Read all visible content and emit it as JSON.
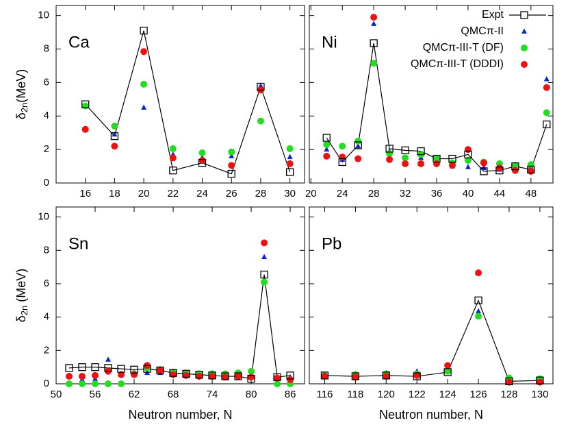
{
  "chart_data": [
    {
      "type": "line",
      "label": "Ca",
      "ylabel": [
        "δ",
        "2n",
        "(MeV)"
      ],
      "x": [
        16,
        18,
        20,
        22,
        24,
        26,
        28,
        30
      ],
      "xlim": [
        14,
        31
      ],
      "ylim": [
        0,
        10.6
      ],
      "xticks": [
        16,
        18,
        20,
        22,
        24,
        26,
        28,
        30
      ],
      "yticks": [
        0,
        2,
        4,
        6,
        8,
        10
      ],
      "series": [
        {
          "color": "#000000",
          "marker": "square",
          "values": [
            4.7,
            2.8,
            9.1,
            0.75,
            1.2,
            0.55,
            5.75,
            0.65
          ]
        },
        {
          "color": "#0a22d8",
          "marker": "triangle",
          "values": [
            4.6,
            2.9,
            4.5,
            1.7,
            1.5,
            1.6,
            5.8,
            1.55
          ]
        },
        {
          "color": "#22dd22",
          "marker": "circle",
          "values": [
            4.6,
            3.4,
            5.9,
            2.05,
            1.8,
            1.85,
            3.7,
            2.05
          ]
        },
        {
          "color": "#ee1111",
          "marker": "circle",
          "values": [
            3.2,
            2.2,
            7.85,
            1.5,
            1.35,
            1.05,
            5.55,
            1.15
          ]
        }
      ]
    },
    {
      "type": "line",
      "label": "Ni",
      "legend": "upper right",
      "x": [
        22,
        24,
        26,
        28,
        30,
        32,
        34,
        36,
        38,
        40,
        42,
        44,
        46,
        48,
        50
      ],
      "xlim": [
        19.8,
        50.8
      ],
      "ylim": [
        0,
        10.6
      ],
      "xticks": [
        20,
        24,
        28,
        32,
        36,
        40,
        44,
        48
      ],
      "yticks": [
        0,
        2,
        4,
        6,
        8,
        10
      ],
      "series": [
        {
          "name": "Expt",
          "color": "#000000",
          "marker": "square",
          "values": [
            2.7,
            1.25,
            2.25,
            8.35,
            2.05,
            1.95,
            1.9,
            1.45,
            1.45,
            1.7,
            0.7,
            0.75,
            1.0,
            0.8,
            3.5
          ]
        },
        {
          "name": "QMCπ-II",
          "color": "#0a22d8",
          "marker": "triangle",
          "values": [
            2.0,
            1.4,
            2.2,
            9.5,
            1.9,
            1.5,
            1.5,
            1.15,
            1.0,
            0.95,
            0.9,
            0.8,
            1.1,
            1.0,
            6.2
          ]
        },
        {
          "name": "QMCπ-III-T (DF)",
          "color": "#22dd22",
          "marker": "circle",
          "values": [
            2.3,
            2.2,
            2.5,
            7.15,
            1.75,
            1.5,
            1.7,
            1.45,
            1.2,
            1.35,
            1.25,
            1.15,
            1.05,
            1.1,
            4.2
          ]
        },
        {
          "name": "QMCπ-III-T (DDDI)",
          "color": "#ee1111",
          "marker": "circle",
          "values": [
            1.6,
            1.55,
            1.45,
            9.9,
            1.4,
            1.15,
            1.15,
            1.15,
            1.05,
            2.0,
            1.2,
            0.9,
            0.75,
            0.7,
            5.7
          ]
        }
      ]
    },
    {
      "type": "line",
      "label": "Sn",
      "ylabel": [
        "δ",
        "2n",
        " (MeV)"
      ],
      "xlabel": "Neutron number, N",
      "x": [
        52,
        54,
        56,
        58,
        60,
        62,
        64,
        66,
        68,
        70,
        72,
        74,
        76,
        78,
        80,
        82,
        84,
        86
      ],
      "xlim": [
        50,
        88.2
      ],
      "ylim": [
        0,
        10.6
      ],
      "xticks": [
        50,
        56,
        62,
        68,
        74,
        80,
        86
      ],
      "yticks": [
        0,
        2,
        4,
        6,
        8,
        10
      ],
      "series": [
        {
          "color": "#000000",
          "marker": "square",
          "values": [
            0.95,
            1.0,
            1.0,
            0.95,
            0.9,
            0.85,
            0.9,
            0.8,
            0.65,
            0.6,
            0.55,
            0.5,
            0.45,
            0.45,
            0.3,
            6.55,
            0.4,
            0.5
          ]
        },
        {
          "color": "#0a22d8",
          "marker": "triangle",
          "values": [
            0.5,
            0.25,
            0.3,
            1.45,
            0.6,
            0.7,
            0.65,
            0.65,
            0.6,
            0.6,
            0.55,
            0.5,
            0.45,
            0.55,
            0.5,
            7.6,
            0.35,
            0.4
          ]
        },
        {
          "color": "#22dd22",
          "marker": "circle",
          "values": [
            0,
            0,
            0,
            0,
            0,
            0.6,
            0.95,
            0.85,
            0.7,
            0.65,
            0.6,
            0.6,
            0.6,
            0.65,
            0.75,
            6.1,
            0,
            0
          ]
        },
        {
          "color": "#ee1111",
          "marker": "circle",
          "values": [
            0.45,
            0.45,
            0.5,
            0.75,
            0.55,
            0.55,
            1.1,
            0.8,
            0.55,
            0.5,
            0.45,
            0.45,
            0.4,
            0.45,
            0.4,
            8.45,
            0.35,
            0.25
          ]
        }
      ]
    },
    {
      "type": "line",
      "label": "Pb",
      "xlabel": "Neutron number, N",
      "x": [
        116,
        118,
        120,
        122,
        124,
        126,
        128,
        130
      ],
      "xlim": [
        115,
        130.85
      ],
      "ylim": [
        0,
        10.6
      ],
      "xticks": [
        116,
        118,
        120,
        122,
        124,
        126,
        128,
        130
      ],
      "yticks": [
        0,
        2,
        4,
        6,
        8,
        10
      ],
      "series": [
        {
          "color": "#000000",
          "marker": "square",
          "values": [
            0.5,
            0.45,
            0.5,
            0.45,
            0.7,
            5.0,
            0.15,
            0.2
          ]
        },
        {
          "color": "#0a22d8",
          "marker": "triangle",
          "values": [
            0.55,
            0.6,
            0.65,
            0.75,
            0.75,
            4.35,
            0.3,
            0.25
          ]
        },
        {
          "color": "#22dd22",
          "marker": "circle",
          "values": [
            0.5,
            0.55,
            0.6,
            0.6,
            0.75,
            4.05,
            0.35,
            0.3
          ]
        },
        {
          "color": "#ee1111",
          "marker": "circle",
          "values": [
            0.45,
            0.4,
            0.45,
            0.5,
            1.1,
            6.65,
            0.1,
            0.1
          ]
        }
      ]
    }
  ]
}
